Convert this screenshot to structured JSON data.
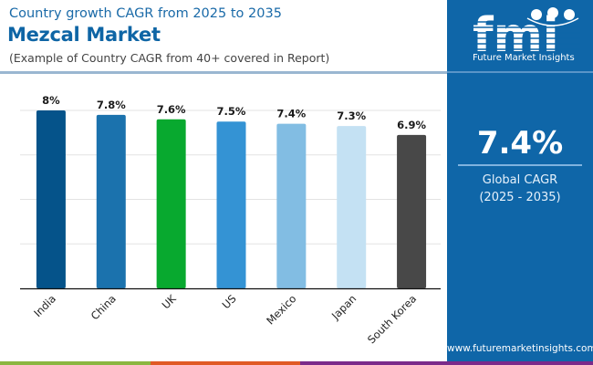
{
  "header": {
    "subtitle": "Country growth CAGR from 2025 to 2035",
    "title": "Mezcal Market",
    "note": "(Example of Country CAGR from 40+ covered in Report)"
  },
  "side_panel": {
    "logo_text": "Future Market Insights",
    "logo_mark": "fmi",
    "global_cagr_value": "7.4%",
    "global_cagr_label": "Global CAGR",
    "global_cagr_period": "(2025 - 2035)",
    "url": "www.futuremarketinsights.com",
    "background": "#0f66a8"
  },
  "bottom_bar_colors": [
    "#8bb640",
    "#e05a25",
    "#7b2a8a"
  ],
  "chart_data": {
    "type": "bar",
    "title": "Mezcal Market",
    "xlabel": "",
    "ylabel": "",
    "categories": [
      "India",
      "China",
      "UK",
      "US",
      "Mexico",
      "Japan",
      "South Korea"
    ],
    "values": [
      8.0,
      7.8,
      7.6,
      7.5,
      7.4,
      7.3,
      6.9
    ],
    "data_labels": [
      "8%",
      "7.8%",
      "7.6%",
      "7.5%",
      "7.4%",
      "7.3%",
      "6.9%"
    ],
    "bar_colors": [
      "#05538a",
      "#1b72ad",
      "#08a92f",
      "#3493d4",
      "#82bde3",
      "#c4e1f3",
      "#484848"
    ],
    "ylim": [
      0,
      8
    ],
    "yticks": [
      0,
      2,
      4,
      6,
      8
    ],
    "ytick_labels_visible": false,
    "grid": true,
    "legend": "none",
    "xtick_rotation": -45
  }
}
